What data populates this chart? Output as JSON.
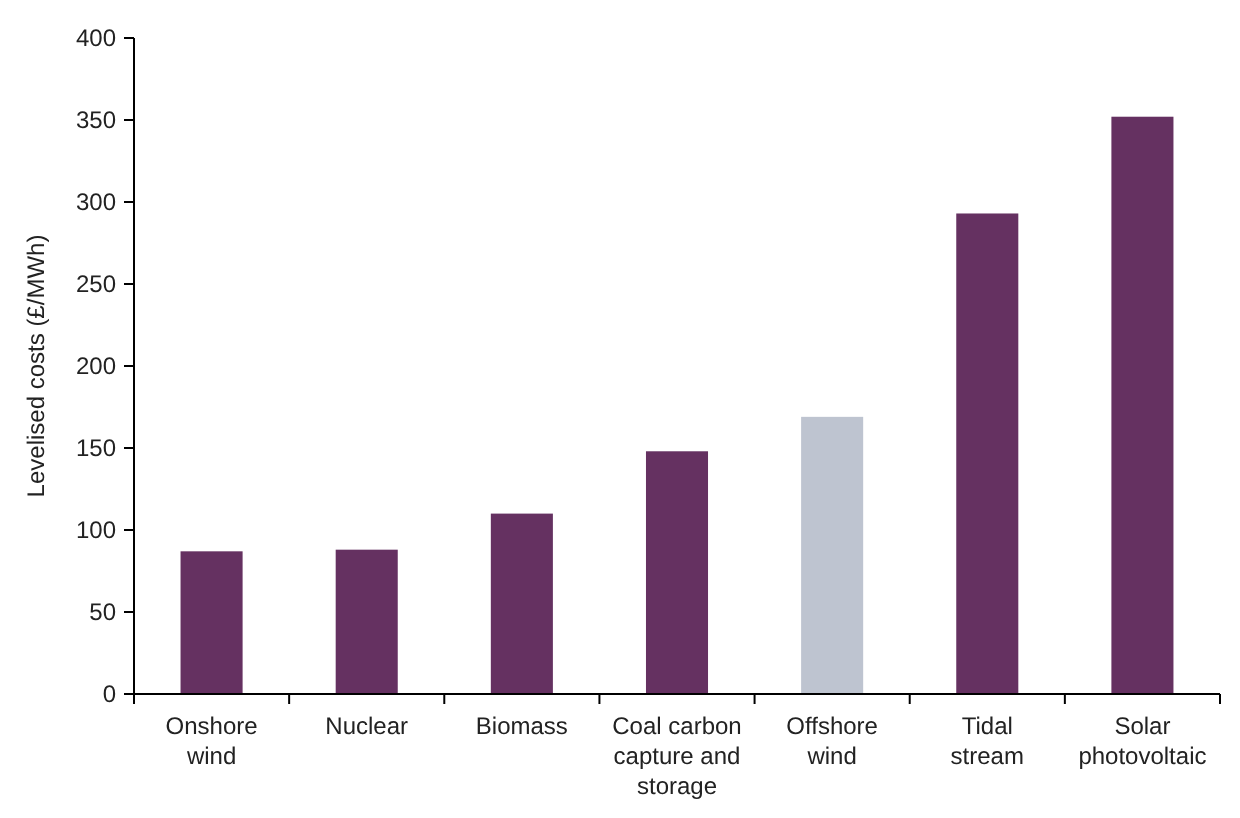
{
  "chart_data": {
    "type": "bar",
    "ylabel": "Levelised costs (£/MWh)",
    "categories": [
      "Onshore wind",
      "Nuclear",
      "Biomass",
      "Coal carbon capture and storage",
      "Offshore wind",
      "Tidal stream",
      "Solar photovoltaic"
    ],
    "values": [
      87,
      88,
      110,
      148,
      169,
      293,
      352
    ],
    "colors": [
      "#653161",
      "#653161",
      "#653161",
      "#653161",
      "#bec4d0",
      "#653161",
      "#653161"
    ],
    "ylim": [
      0,
      400
    ],
    "yticks": [
      0,
      50,
      100,
      150,
      200,
      250,
      300,
      350,
      400
    ],
    "grid": false
  }
}
